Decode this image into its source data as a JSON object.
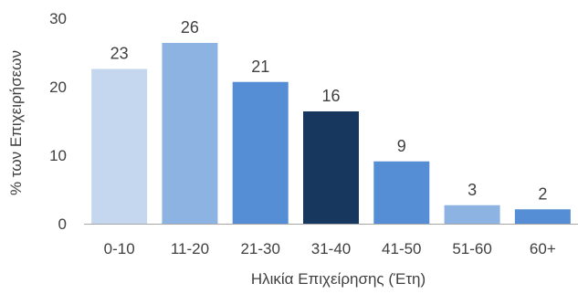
{
  "chart_data": {
    "type": "bar",
    "title": "",
    "xlabel": "Ηλικία Επιχείρησης (Έτη)",
    "ylabel": "% των Επιχειρήσεων",
    "categories": [
      "0-10",
      "11-20",
      "21-30",
      "31-40",
      "41-50",
      "51-60",
      "60+"
    ],
    "values": [
      22.6,
      26.4,
      20.7,
      16.4,
      9.1,
      2.7,
      2.1
    ],
    "data_labels": [
      "23",
      "26",
      "21",
      "16",
      "9",
      "3",
      "2"
    ],
    "colors": [
      "#c5d7ef",
      "#8db3e2",
      "#558ed5",
      "#17375e",
      "#558ed5",
      "#8db3e2",
      "#558ed5"
    ],
    "ylim": [
      0,
      30
    ],
    "yticks": [
      0,
      10,
      20,
      30
    ],
    "ytick_labels": [
      "0",
      "10",
      "20",
      "30"
    ],
    "grid": false,
    "legend": "none"
  }
}
